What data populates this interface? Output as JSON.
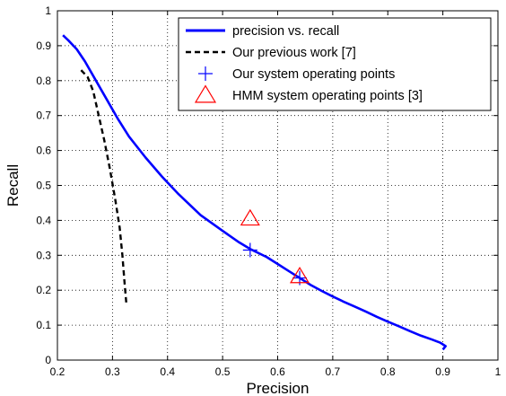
{
  "chart_data": {
    "type": "line",
    "xlabel": "Precision",
    "ylabel": "Recall",
    "xlim": [
      0.2,
      1
    ],
    "ylim": [
      0,
      1
    ],
    "x_ticks": [
      "0.2",
      "0.3",
      "0.4",
      "0.5",
      "0.6",
      "0.7",
      "0.8",
      "0.9",
      "1"
    ],
    "y_ticks": [
      "0",
      "0.1",
      "0.2",
      "0.3",
      "0.4",
      "0.5",
      "0.6",
      "0.7",
      "0.8",
      "0.9",
      "1"
    ],
    "grid": true,
    "legend_position": "top-right",
    "series": [
      {
        "name": "precision vs. recall",
        "style": "solid",
        "color": "#0000ff",
        "x": [
          0.21,
          0.22,
          0.235,
          0.25,
          0.27,
          0.29,
          0.31,
          0.33,
          0.36,
          0.39,
          0.42,
          0.46,
          0.5,
          0.53,
          0.55,
          0.58,
          0.6,
          0.62,
          0.64,
          0.66,
          0.68,
          0.7,
          0.72,
          0.74,
          0.76,
          0.78,
          0.8,
          0.82,
          0.84,
          0.86,
          0.88,
          0.895,
          0.905,
          0.9
        ],
        "y": [
          0.93,
          0.915,
          0.89,
          0.855,
          0.8,
          0.745,
          0.69,
          0.64,
          0.58,
          0.525,
          0.475,
          0.415,
          0.37,
          0.337,
          0.318,
          0.295,
          0.275,
          0.255,
          0.235,
          0.215,
          0.198,
          0.182,
          0.167,
          0.153,
          0.139,
          0.124,
          0.11,
          0.097,
          0.083,
          0.07,
          0.059,
          0.05,
          0.04,
          0.03
        ]
      },
      {
        "name": "Our previous work [7]",
        "style": "dashed",
        "color": "#000000",
        "x": [
          0.243,
          0.255,
          0.265,
          0.275,
          0.285,
          0.295,
          0.305,
          0.313,
          0.318,
          0.322,
          0.325
        ],
        "y": [
          0.83,
          0.81,
          0.77,
          0.7,
          0.63,
          0.55,
          0.46,
          0.38,
          0.3,
          0.22,
          0.165
        ]
      },
      {
        "name": "Our system operating points",
        "marker": "plus",
        "color": "#0000ff",
        "x": [
          0.55,
          0.64
        ],
        "y": [
          0.315,
          0.235
        ]
      },
      {
        "name": "HMM system operating points [3]",
        "marker": "triangle",
        "color": "#ff0000",
        "x": [
          0.55,
          0.64
        ],
        "y": [
          0.405,
          0.24
        ]
      }
    ]
  }
}
